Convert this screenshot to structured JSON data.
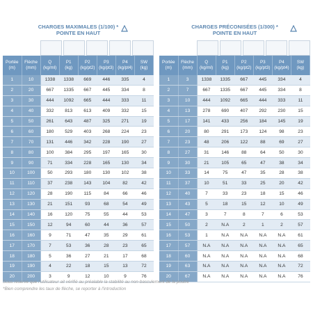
{
  "tables": [
    {
      "title": [
        "CHARGES MAXIMALES (1/100) *",
        "POINTE EN HAUT"
      ],
      "headers": [
        [
          "Portée",
          "(m)"
        ],
        [
          "Flèche",
          "(mm)"
        ],
        [
          "Q",
          "(kg/ml)"
        ],
        [
          "P1",
          "(kg)"
        ],
        [
          "P2",
          "(kg/pt2)"
        ],
        [
          "P3",
          "(kg/pt3)"
        ],
        [
          "P4",
          "(kg/pt4)"
        ],
        [
          "SW",
          "(kg)"
        ]
      ],
      "rows": [
        [
          1,
          10,
          1338,
          1338,
          669,
          446,
          335,
          4
        ],
        [
          2,
          20,
          667,
          1335,
          667,
          445,
          334,
          8
        ],
        [
          3,
          30,
          444,
          1092,
          665,
          444,
          333,
          11
        ],
        [
          4,
          40,
          332,
          813,
          613,
          409,
          332,
          15
        ],
        [
          5,
          50,
          261,
          643,
          487,
          325,
          271,
          19
        ],
        [
          6,
          60,
          180,
          529,
          403,
          268,
          224,
          23
        ],
        [
          7,
          70,
          131,
          446,
          342,
          228,
          190,
          27
        ],
        [
          8,
          80,
          100,
          384,
          295,
          197,
          165,
          30
        ],
        [
          9,
          90,
          71,
          334,
          228,
          165,
          130,
          34
        ],
        [
          10,
          100,
          50,
          293,
          180,
          130,
          102,
          38
        ],
        [
          11,
          110,
          37,
          238,
          143,
          104,
          82,
          42
        ],
        [
          12,
          120,
          28,
          190,
          115,
          84,
          66,
          46
        ],
        [
          13,
          130,
          21,
          151,
          93,
          68,
          54,
          49
        ],
        [
          14,
          140,
          16,
          120,
          75,
          55,
          44,
          53
        ],
        [
          15,
          150,
          12,
          94,
          60,
          44,
          36,
          57
        ],
        [
          16,
          160,
          9,
          71,
          47,
          35,
          29,
          61
        ],
        [
          17,
          170,
          7,
          53,
          36,
          28,
          23,
          65
        ],
        [
          18,
          180,
          5,
          36,
          27,
          21,
          17,
          68
        ],
        [
          19,
          190,
          4,
          22,
          18,
          15,
          13,
          72
        ],
        [
          20,
          200,
          3,
          9,
          12,
          10,
          9,
          76
        ]
      ]
    },
    {
      "title": [
        "CHARGES PRÉCONISÉES (1/300) *",
        "POINTE EN HAUT"
      ],
      "headers": [
        [
          "Portée",
          "(m)"
        ],
        [
          "Flèche",
          "(mm)"
        ],
        [
          "Q",
          "(kg/ml)"
        ],
        [
          "P1",
          "(kg)"
        ],
        [
          "P2",
          "(kg/pt2)"
        ],
        [
          "P3",
          "(kg/pt3)"
        ],
        [
          "P4",
          "(kg/pt4)"
        ],
        [
          "SW",
          "(kg)"
        ]
      ],
      "rows": [
        [
          1,
          3,
          1338,
          1335,
          667,
          445,
          334,
          4
        ],
        [
          2,
          7,
          667,
          1335,
          667,
          445,
          334,
          8
        ],
        [
          3,
          10,
          444,
          1092,
          665,
          444,
          333,
          11
        ],
        [
          4,
          13,
          278,
          690,
          407,
          292,
          230,
          15
        ],
        [
          5,
          17,
          141,
          433,
          256,
          184,
          145,
          19
        ],
        [
          6,
          20,
          80,
          291,
          173,
          124,
          98,
          23
        ],
        [
          7,
          23,
          48,
          206,
          122,
          88,
          69,
          27
        ],
        [
          8,
          27,
          31,
          146,
          88,
          64,
          50,
          30
        ],
        [
          9,
          30,
          21,
          105,
          65,
          47,
          38,
          34
        ],
        [
          10,
          33,
          14,
          75,
          47,
          35,
          28,
          38
        ],
        [
          11,
          37,
          10,
          51,
          33,
          25,
          20,
          42
        ],
        [
          12,
          40,
          7,
          33,
          23,
          18,
          15,
          46
        ],
        [
          13,
          43,
          5,
          18,
          15,
          12,
          10,
          49
        ],
        [
          14,
          47,
          3,
          7,
          8,
          7,
          6,
          53
        ],
        [
          15,
          50,
          2,
          "N.A",
          2,
          1,
          2,
          57
        ],
        [
          16,
          53,
          1,
          "N.A",
          "N.A",
          "N.A",
          "N.A",
          61
        ],
        [
          17,
          57,
          "N.A",
          "N.A",
          "N.A",
          "N.A",
          "N.A",
          65
        ],
        [
          18,
          60,
          "N.A",
          "N.A",
          "N.A",
          "N.A",
          "N.A",
          68
        ],
        [
          19,
          63,
          "N.A",
          "N.A",
          "N.A",
          "N.A",
          "N.A",
          72
        ],
        [
          20,
          67,
          "N.A",
          "N.A",
          "N.A",
          "N.A",
          "N.A",
          76
        ]
      ]
    }
  ],
  "footnotes": [
    "Sous réserve que l'utilisateur ait vérifié au préalable la stabilité au non-basculement de la poutre",
    "*Bien comprendre les taux de flèche, se reporter à l'introduction"
  ]
}
